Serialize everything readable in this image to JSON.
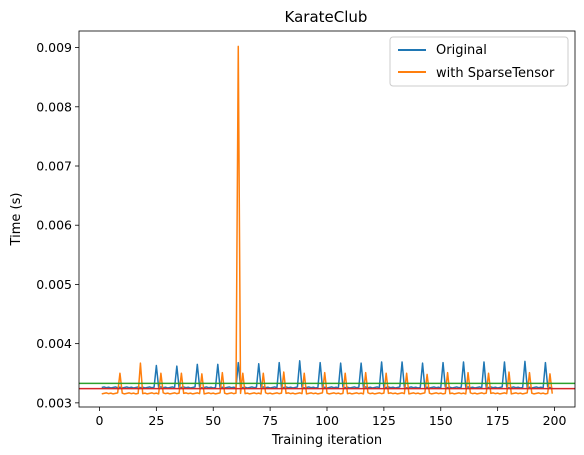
{
  "chart_data": {
    "type": "line",
    "title": "KarateClub",
    "xlabel": "Training iteration",
    "ylabel": "Time (s)",
    "xlim": [
      -9,
      209
    ],
    "ylim": [
      0.00293,
      0.00928
    ],
    "xticks": [
      0,
      25,
      50,
      75,
      100,
      125,
      150,
      175,
      200
    ],
    "yticks": [
      0.003,
      0.004,
      0.005,
      0.006,
      0.007,
      0.008,
      0.009
    ],
    "ytick_labels": [
      "0.003",
      "0.004",
      "0.005",
      "0.006",
      "0.007",
      "0.008",
      "0.009"
    ],
    "legend": {
      "position": "upper right",
      "entries": [
        "Original",
        "with SparseTensor"
      ]
    },
    "series": [
      {
        "name": "Original",
        "color": "#1f77b4",
        "baseline": 0.00326,
        "spikes": [
          {
            "x": 25,
            "y": 0.00363
          },
          {
            "x": 34,
            "y": 0.00362
          },
          {
            "x": 43,
            "y": 0.00365
          },
          {
            "x": 52,
            "y": 0.00365
          },
          {
            "x": 61,
            "y": 0.00368
          },
          {
            "x": 70,
            "y": 0.00366
          },
          {
            "x": 79,
            "y": 0.00368
          },
          {
            "x": 88,
            "y": 0.00371
          },
          {
            "x": 97,
            "y": 0.00368
          },
          {
            "x": 106,
            "y": 0.00367
          },
          {
            "x": 115,
            "y": 0.00367
          },
          {
            "x": 124,
            "y": 0.00369
          },
          {
            "x": 133,
            "y": 0.00369
          },
          {
            "x": 142,
            "y": 0.00367
          },
          {
            "x": 151,
            "y": 0.00368
          },
          {
            "x": 160,
            "y": 0.00369
          },
          {
            "x": 169,
            "y": 0.00369
          },
          {
            "x": 178,
            "y": 0.00369
          },
          {
            "x": 187,
            "y": 0.0037
          },
          {
            "x": 196,
            "y": 0.00368
          }
        ]
      },
      {
        "name": "with SparseTensor",
        "color": "#ff7f0e",
        "baseline": 0.00316,
        "spikes": [
          {
            "x": 9,
            "y": 0.0035
          },
          {
            "x": 18,
            "y": 0.00367
          },
          {
            "x": 27,
            "y": 0.0035
          },
          {
            "x": 36,
            "y": 0.0035
          },
          {
            "x": 45,
            "y": 0.00349
          },
          {
            "x": 54,
            "y": 0.00351
          },
          {
            "x": 61,
            "y": 0.00902
          },
          {
            "x": 63,
            "y": 0.0035
          },
          {
            "x": 72,
            "y": 0.0035
          },
          {
            "x": 81,
            "y": 0.00352
          },
          {
            "x": 90,
            "y": 0.0035
          },
          {
            "x": 99,
            "y": 0.00351
          },
          {
            "x": 108,
            "y": 0.0035
          },
          {
            "x": 117,
            "y": 0.00351
          },
          {
            "x": 126,
            "y": 0.0035
          },
          {
            "x": 135,
            "y": 0.0035
          },
          {
            "x": 144,
            "y": 0.00348
          },
          {
            "x": 153,
            "y": 0.00351
          },
          {
            "x": 162,
            "y": 0.00351
          },
          {
            "x": 171,
            "y": 0.0035
          },
          {
            "x": 180,
            "y": 0.00352
          },
          {
            "x": 189,
            "y": 0.00351
          },
          {
            "x": 198,
            "y": 0.00349
          }
        ]
      }
    ],
    "hlines": [
      {
        "name": "green reference line",
        "y": 0.00333,
        "color": "#2ca02c"
      },
      {
        "name": "red reference line",
        "y": 0.00324,
        "color": "#d62728"
      }
    ]
  }
}
